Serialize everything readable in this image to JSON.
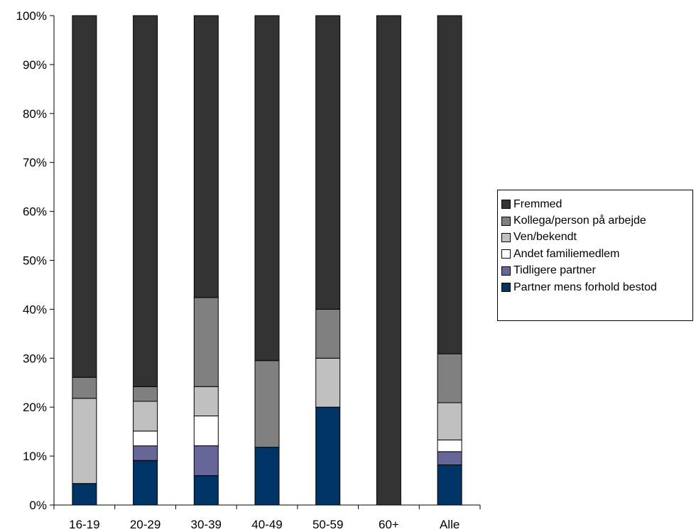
{
  "chart_data": {
    "type": "bar",
    "stacked": true,
    "categories": [
      "16-19",
      "20-29",
      "30-39",
      "40-49",
      "50-59",
      "60+",
      "Alle"
    ],
    "series": [
      {
        "name": "Partner mens forhold bestod",
        "color": "#003366",
        "values": [
          4.4,
          9.1,
          6.0,
          11.8,
          20.0,
          0,
          8.2
        ]
      },
      {
        "name": "Tidligere partner",
        "color": "#666699",
        "values": [
          0,
          3.0,
          6.1,
          0,
          0,
          0,
          2.7
        ]
      },
      {
        "name": "Andet familiemedlem",
        "color": "#ffffff",
        "values": [
          0,
          3.0,
          6.1,
          0,
          0,
          0,
          2.4
        ]
      },
      {
        "name": "Ven/bekendt",
        "color": "#c0c0c0",
        "values": [
          17.4,
          6.1,
          6.0,
          0,
          10.0,
          0,
          7.6
        ]
      },
      {
        "name": "Kollega/person på arbejde",
        "color": "#808080",
        "values": [
          4.3,
          3.0,
          18.2,
          17.7,
          10.0,
          0,
          10.0
        ]
      },
      {
        "name": "Fremmed",
        "color": "#333333",
        "values": [
          73.9,
          75.8,
          57.6,
          70.5,
          60.0,
          100,
          69.1
        ]
      }
    ],
    "yticks": [
      "0%",
      "10%",
      "20%",
      "30%",
      "40%",
      "50%",
      "60%",
      "70%",
      "80%",
      "90%",
      "100%"
    ],
    "ylim": [
      0,
      100
    ],
    "legend_position": "right"
  }
}
